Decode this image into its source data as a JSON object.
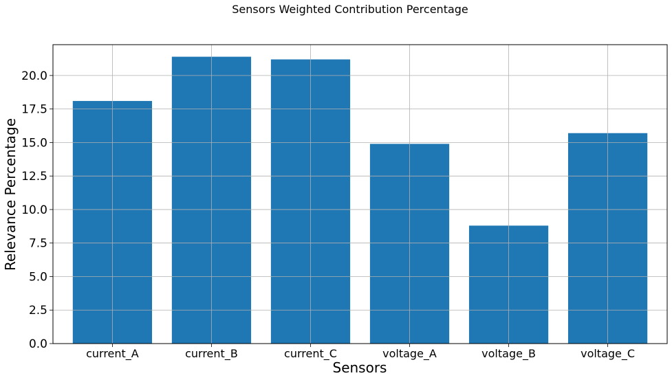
{
  "chart_data": {
    "type": "bar",
    "title": "Sensors Weighted Contribution Percentage",
    "xlabel": "Sensors",
    "ylabel": "Relevance Percentage",
    "categories": [
      "current_A",
      "current_B",
      "current_C",
      "voltage_A",
      "voltage_B",
      "voltage_C"
    ],
    "values": [
      18.1,
      21.4,
      21.2,
      14.9,
      8.8,
      15.7
    ],
    "ylim": [
      0,
      22.3
    ],
    "yticks": [
      "0.0",
      "2.5",
      "5.0",
      "7.5",
      "10.0",
      "12.5",
      "15.0",
      "17.5",
      "20.0"
    ],
    "grid": true,
    "bar_color": "#1f77b4"
  }
}
